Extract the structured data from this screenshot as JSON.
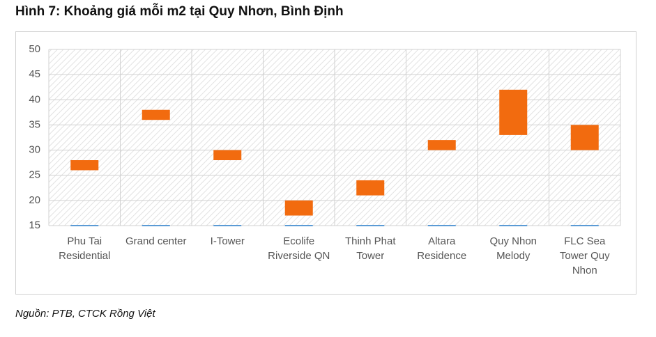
{
  "chart_data": {
    "type": "range-bar",
    "title": "Hình 7: Khoảng giá mỗi m2 tại Quy Nhơn, Bình Định",
    "categories": [
      "Phu Tai Residential",
      "Grand center",
      "I-Tower",
      "Ecolife Riverside QN",
      "Thinh Phat Tower",
      "Altara Residence",
      "Quy Nhon Melody",
      "FLC Sea Tower Quy Nhon"
    ],
    "low": [
      26,
      36,
      28,
      17,
      21,
      30,
      33,
      30
    ],
    "high": [
      28,
      38,
      30,
      20,
      24,
      32,
      42,
      35
    ],
    "color": "#f26b0f",
    "ylim": [
      15,
      50
    ],
    "yticks": [
      15,
      20,
      25,
      30,
      35,
      40,
      45,
      50
    ],
    "grid": true,
    "source": "Nguồn: PTB, CTCK Rồng Việt"
  }
}
